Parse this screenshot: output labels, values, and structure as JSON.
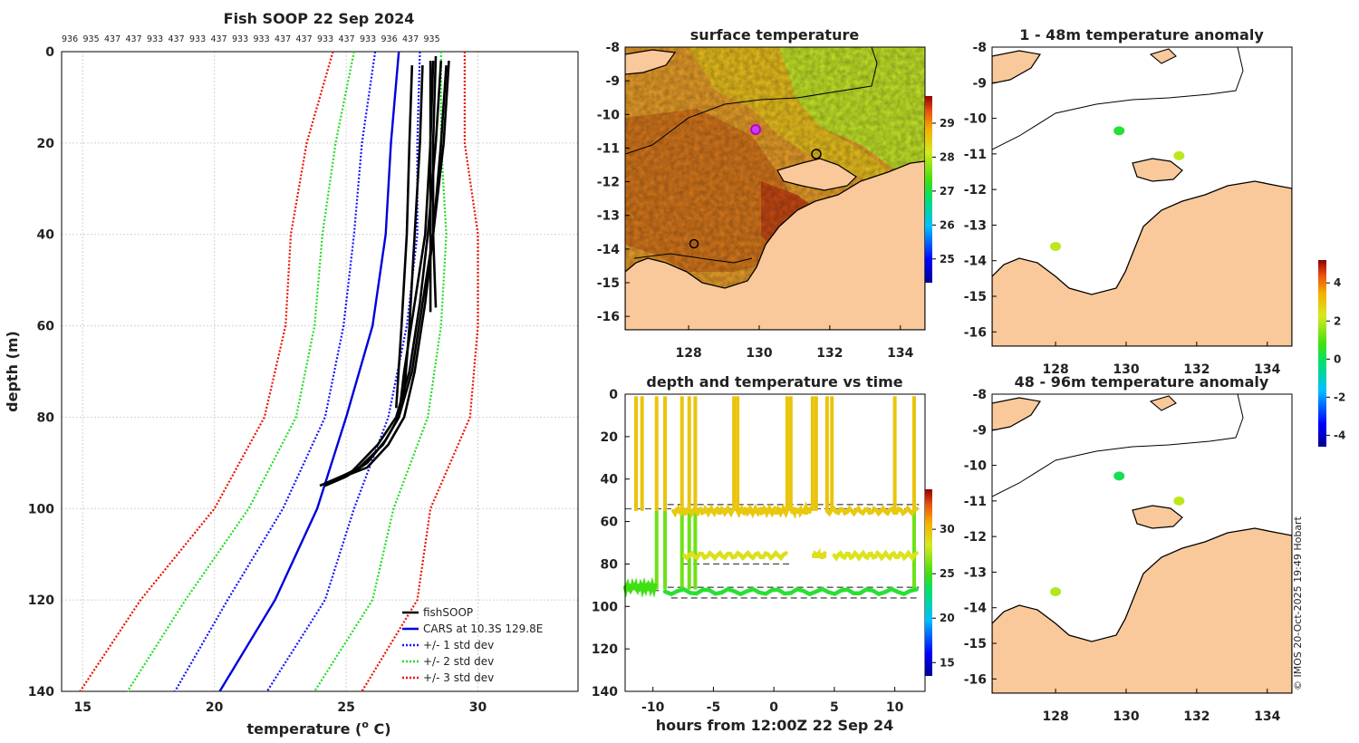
{
  "colors": {
    "fishsoop": "#000000",
    "cars": "#0000dd",
    "std1": "#1414ff",
    "std2": "#22dd22",
    "std3": "#ee1100",
    "land": "#f9c99b",
    "sea_warm": "#e8902a",
    "sea_mid": "#f2b01e",
    "sea_cool": "#c8ee2a"
  },
  "chart_data": [
    {
      "id": "profile",
      "type": "line",
      "title": "Fish SOOP 22 Sep 2024",
      "xlabel": "temperature (",
      "xlabel_sup": "o",
      "xlabel_tail": " C)",
      "ylabel": "depth (m)",
      "xlim": [
        14.2,
        33.8
      ],
      "ylim": [
        0,
        140
      ],
      "x_ticks": [
        15,
        20,
        25,
        30
      ],
      "y_ticks": [
        0,
        20,
        40,
        60,
        80,
        100,
        120,
        140
      ],
      "top_labels": [
        "936",
        "935",
        "437",
        "437",
        "933",
        "437",
        "933",
        "437",
        "933",
        "933",
        "437",
        "437",
        "933",
        "437",
        "933",
        "936",
        "437",
        "935"
      ],
      "legend": [
        "fishSOOP",
        "CARS at 10.3S 129.8E",
        "+/- 1 std dev",
        "+/- 2 std dev",
        "+/- 3 std dev"
      ],
      "depth": [
        0,
        20,
        40,
        60,
        80,
        100,
        120,
        140
      ],
      "cars": [
        27.0,
        26.7,
        26.5,
        26.0,
        25.0,
        23.9,
        22.3,
        20.2
      ],
      "std1_lo": [
        26.1,
        25.6,
        25.3,
        24.9,
        24.2,
        22.6,
        20.5,
        18.5
      ],
      "std1_hi": [
        27.8,
        27.7,
        27.7,
        27.3,
        26.6,
        25.3,
        24.2,
        22.0
      ],
      "std2_lo": [
        25.3,
        24.6,
        24.1,
        23.8,
        23.1,
        21.3,
        18.9,
        16.7
      ],
      "std2_hi": [
        28.6,
        28.6,
        28.8,
        28.6,
        28.1,
        26.8,
        26.0,
        23.8
      ],
      "std3_lo": [
        24.5,
        23.5,
        22.9,
        22.7,
        21.9,
        20.0,
        17.2,
        14.9
      ],
      "std3_hi": [
        29.5,
        29.5,
        30.0,
        30.0,
        29.7,
        28.2,
        27.7,
        25.6
      ],
      "fish_profiles": [
        {
          "t": [
            27.9,
            27.8,
            27.6,
            27.4,
            27.2,
            27.0
          ],
          "d": [
            3,
            20,
            40,
            60,
            75,
            80
          ]
        },
        {
          "t": [
            28.3,
            28.2,
            28.0,
            27.6,
            27.2,
            27.0,
            26.5,
            25.8,
            25.0,
            24.2
          ],
          "d": [
            2,
            20,
            40,
            55,
            70,
            80,
            85,
            90,
            93,
            95
          ]
        },
        {
          "t": [
            28.6,
            28.4,
            28.1,
            27.8,
            27.4,
            26.9,
            26.2,
            25.2,
            24.0
          ],
          "d": [
            2,
            20,
            40,
            55,
            70,
            80,
            86,
            92,
            95
          ]
        },
        {
          "t": [
            28.8,
            28.6,
            28.3,
            27.9,
            27.5,
            27.0,
            26.4,
            25.5,
            24.5
          ],
          "d": [
            3,
            20,
            40,
            55,
            70,
            80,
            86,
            91,
            94
          ]
        },
        {
          "t": [
            28.9,
            28.7,
            28.3,
            28.0,
            27.6,
            27.2,
            26.6,
            25.8,
            24.9
          ],
          "d": [
            2,
            20,
            40,
            55,
            70,
            80,
            86,
            91,
            93
          ]
        },
        {
          "t": [
            28.2,
            28.2,
            28.2,
            28.2
          ],
          "d": [
            2,
            20,
            40,
            57
          ]
        },
        {
          "t": [
            28.4,
            28.3,
            28.3,
            28.4
          ],
          "d": [
            1,
            20,
            40,
            56
          ]
        },
        {
          "t": [
            27.5,
            27.4,
            27.3,
            27.1,
            26.9
          ],
          "d": [
            3,
            20,
            40,
            60,
            78
          ]
        }
      ]
    },
    {
      "id": "surface",
      "type": "heatmap",
      "title": "surface temperature",
      "xlim": [
        126.2,
        134.7
      ],
      "ylim": [
        -16.4,
        -8
      ],
      "x_ticks": [
        128,
        130,
        132,
        134
      ],
      "y_ticks": [
        -8,
        -9,
        -10,
        -11,
        -12,
        -13,
        -14,
        -15,
        -16
      ],
      "colorbar_ticks": [
        25,
        26,
        27,
        28,
        29
      ],
      "colorbar_range": [
        24.3,
        29.8
      ]
    },
    {
      "id": "anom1",
      "type": "scatter",
      "title": "1 - 48m temperature anomaly",
      "xlim": [
        126.2,
        134.7
      ],
      "ylim": [
        -16.4,
        -8
      ],
      "x_ticks": [
        128,
        130,
        132,
        134
      ],
      "y_ticks": [
        -8,
        -9,
        -10,
        -11,
        -12,
        -13,
        -14,
        -15,
        -16
      ],
      "points": [
        {
          "lon": 129.8,
          "lat": -10.35,
          "anom": 0.4
        },
        {
          "lon": 131.5,
          "lat": -11.05,
          "anom": 2.0
        },
        {
          "lon": 128.0,
          "lat": -13.6,
          "anom": 2.0
        }
      ]
    },
    {
      "id": "anom2",
      "type": "scatter",
      "title": "48 - 96m temperature anomaly",
      "xlim": [
        126.2,
        134.7
      ],
      "ylim": [
        -16.4,
        -8
      ],
      "x_ticks": [
        128,
        130,
        132,
        134
      ],
      "y_ticks": [
        -8,
        -9,
        -10,
        -11,
        -12,
        -13,
        -14,
        -15,
        -16
      ],
      "points": [
        {
          "lon": 129.8,
          "lat": -10.3,
          "anom": 0.1
        },
        {
          "lon": 131.5,
          "lat": -11.0,
          "anom": 2.0
        },
        {
          "lon": 128.0,
          "lat": -13.55,
          "anom": 1.9
        }
      ],
      "colorbar_ticks": [
        -4,
        -2,
        0,
        2,
        4
      ],
      "colorbar_range": [
        -4.6,
        5.2
      ]
    },
    {
      "id": "timeseries",
      "type": "scatter",
      "title": "depth and temperature vs time",
      "xlabel": "hours from 12:00Z 22 Sep 24",
      "xlim": [
        -12.3,
        12.5
      ],
      "ylim": [
        0,
        140
      ],
      "x_ticks": [
        -10,
        -5,
        0,
        5,
        10
      ],
      "y_ticks": [
        0,
        20,
        40,
        60,
        80,
        100,
        120,
        140
      ],
      "colorbar_ticks": [
        15,
        20,
        25,
        30
      ],
      "colorbar_range": [
        13.5,
        34.5
      ],
      "bottom_lines": [
        {
          "t0": -12.3,
          "t1": -9.5,
          "d": 92.5
        },
        {
          "t0": -12.3,
          "t1": 12.0,
          "d": 54
        },
        {
          "t0": -8.8,
          "t1": 12.0,
          "d": 52
        },
        {
          "t0": -7.5,
          "t1": 1.5,
          "d": 80
        },
        {
          "t0": 5.0,
          "t1": 11.5,
          "d": 76
        },
        {
          "t0": -8.8,
          "t1": 12.0,
          "d": 91
        },
        {
          "t0": -8.5,
          "t1": 12.0,
          "d": 96
        }
      ],
      "tows": [
        {
          "s": -12.3,
          "e": -9.8,
          "d": 91,
          "t": 25.0
        },
        {
          "s": -9.0,
          "e": 11.8,
          "d": 93,
          "t": 24.3
        },
        {
          "s": -8.3,
          "e": -3.3,
          "d": 55,
          "t": 29.5
        },
        {
          "s": -3.0,
          "e": 1.2,
          "d": 55,
          "t": 29.7
        },
        {
          "s": -7.4,
          "e": 1.0,
          "d": 76,
          "t": 28.6
        },
        {
          "s": 3.3,
          "e": 4.2,
          "d": 76,
          "t": 28.6
        },
        {
          "s": 5.0,
          "e": 11.8,
          "d": 76,
          "t": 28.4
        },
        {
          "s": 1.5,
          "e": 3.0,
          "d": 55,
          "t": 29.6
        },
        {
          "s": 4.4,
          "e": 11.8,
          "d": 55,
          "t": 29.6
        }
      ],
      "casts": [
        -11.4,
        -10.9,
        -9.7,
        -9.0,
        -7.6,
        -7.0,
        -6.5,
        -3.3,
        -3.0,
        1.1,
        1.4,
        3.2,
        3.5,
        4.4,
        4.8,
        10.0,
        11.6
      ]
    }
  ],
  "footer": {
    "credit": "© IMOS 20-Oct-2025 19:49 Hobart"
  }
}
